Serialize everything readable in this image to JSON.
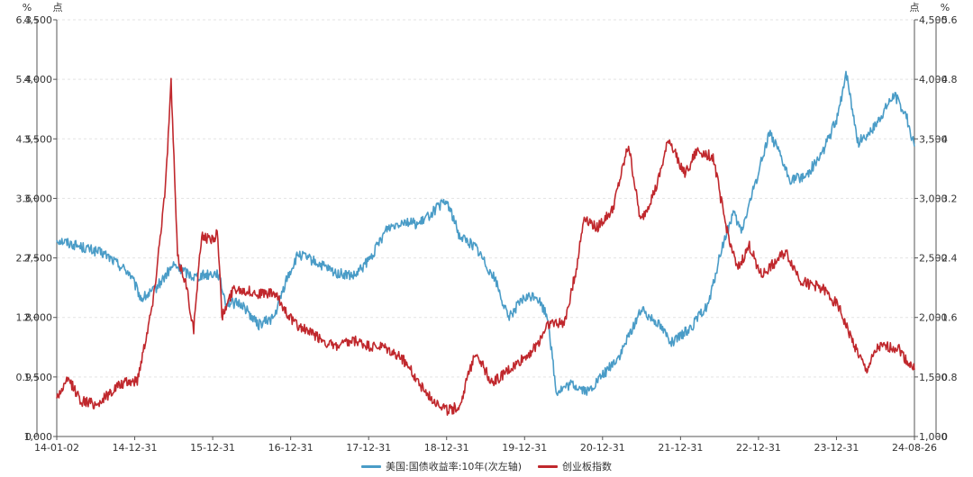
{
  "chart_data": {
    "type": "line",
    "units": {
      "y_left_outer": "%",
      "y_left_inner": "点",
      "y_right_inner": "点",
      "y_right_outer": "%"
    },
    "x_ticks": [
      "14-01-02",
      "14-12-31",
      "15-12-31",
      "16-12-31",
      "17-12-31",
      "18-12-31",
      "19-12-31",
      "20-12-31",
      "21-12-31",
      "22-12-31",
      "23-12-31",
      "24-08-26"
    ],
    "y_left_outer_ticks": [
      "0",
      "0.9",
      "1.8",
      "2.7",
      "3.6",
      "4.5",
      "5.4",
      "6.3"
    ],
    "y_index_ticks": [
      "1,000",
      "1,500",
      "2,000",
      "2,500",
      "3,000",
      "3,500",
      "4,000",
      "4,500"
    ],
    "y_right_outer_ticks": [
      "0",
      "0.8",
      "1.6",
      "2.4",
      "3.2",
      "4",
      "4.8",
      "5.6"
    ],
    "y_index_range": [
      1000,
      4500
    ],
    "y_right_range": [
      0,
      5.6
    ],
    "series": [
      {
        "name": "美国:国债收益率:10年(次左轴)",
        "color": "#4a9cc7",
        "axis": "right",
        "points": [
          [
            2014.0,
            2.65
          ],
          [
            2014.3,
            2.55
          ],
          [
            2014.6,
            2.45
          ],
          [
            2014.9,
            2.2
          ],
          [
            2015.05,
            1.85
          ],
          [
            2015.2,
            1.95
          ],
          [
            2015.45,
            2.3
          ],
          [
            2015.7,
            2.15
          ],
          [
            2016.0,
            2.2
          ],
          [
            2016.1,
            1.8
          ],
          [
            2016.3,
            1.78
          ],
          [
            2016.5,
            1.5
          ],
          [
            2016.7,
            1.6
          ],
          [
            2016.85,
            2.1
          ],
          [
            2017.0,
            2.45
          ],
          [
            2017.2,
            2.35
          ],
          [
            2017.45,
            2.2
          ],
          [
            2017.7,
            2.15
          ],
          [
            2017.9,
            2.4
          ],
          [
            2018.1,
            2.8
          ],
          [
            2018.3,
            2.9
          ],
          [
            2018.5,
            2.85
          ],
          [
            2018.75,
            3.1
          ],
          [
            2018.85,
            3.15
          ],
          [
            2019.0,
            2.7
          ],
          [
            2019.2,
            2.55
          ],
          [
            2019.45,
            2.1
          ],
          [
            2019.6,
            1.6
          ],
          [
            2019.8,
            1.85
          ],
          [
            2019.95,
            1.9
          ],
          [
            2020.1,
            1.6
          ],
          [
            2020.2,
            0.6
          ],
          [
            2020.4,
            0.7
          ],
          [
            2020.6,
            0.6
          ],
          [
            2020.8,
            0.85
          ],
          [
            2021.0,
            1.1
          ],
          [
            2021.25,
            1.7
          ],
          [
            2021.45,
            1.55
          ],
          [
            2021.65,
            1.25
          ],
          [
            2021.9,
            1.5
          ],
          [
            2022.1,
            1.8
          ],
          [
            2022.25,
            2.5
          ],
          [
            2022.4,
            3.0
          ],
          [
            2022.5,
            2.75
          ],
          [
            2022.7,
            3.5
          ],
          [
            2022.85,
            4.1
          ],
          [
            2022.95,
            3.85
          ],
          [
            2023.1,
            3.45
          ],
          [
            2023.3,
            3.5
          ],
          [
            2023.5,
            3.8
          ],
          [
            2023.7,
            4.3
          ],
          [
            2023.8,
            4.9
          ],
          [
            2023.95,
            3.95
          ],
          [
            2024.15,
            4.15
          ],
          [
            2024.4,
            4.6
          ],
          [
            2024.55,
            4.3
          ],
          [
            2024.65,
            3.9
          ]
        ]
      },
      {
        "name": "创业板指数",
        "color": "#c0282d",
        "axis": "left",
        "points": [
          [
            2014.0,
            1330
          ],
          [
            2014.15,
            1480
          ],
          [
            2014.3,
            1300
          ],
          [
            2014.5,
            1270
          ],
          [
            2014.75,
            1420
          ],
          [
            2014.9,
            1460
          ],
          [
            2015.0,
            1470
          ],
          [
            2015.2,
            2150
          ],
          [
            2015.35,
            3100
          ],
          [
            2015.42,
            3980
          ],
          [
            2015.5,
            2500
          ],
          [
            2015.6,
            2300
          ],
          [
            2015.7,
            1900
          ],
          [
            2015.8,
            2700
          ],
          [
            2015.9,
            2650
          ],
          [
            2016.0,
            2700
          ],
          [
            2016.05,
            2000
          ],
          [
            2016.2,
            2250
          ],
          [
            2016.5,
            2200
          ],
          [
            2016.7,
            2200
          ],
          [
            2016.95,
            1950
          ],
          [
            2017.2,
            1850
          ],
          [
            2017.45,
            1750
          ],
          [
            2017.7,
            1800
          ],
          [
            2017.9,
            1750
          ],
          [
            2018.05,
            1750
          ],
          [
            2018.3,
            1650
          ],
          [
            2018.6,
            1350
          ],
          [
            2018.85,
            1220
          ],
          [
            2019.0,
            1250
          ],
          [
            2019.2,
            1720
          ],
          [
            2019.4,
            1450
          ],
          [
            2019.7,
            1600
          ],
          [
            2019.95,
            1750
          ],
          [
            2020.1,
            1950
          ],
          [
            2020.3,
            1950
          ],
          [
            2020.45,
            2400
          ],
          [
            2020.55,
            2850
          ],
          [
            2020.7,
            2750
          ],
          [
            2020.9,
            2900
          ],
          [
            2021.1,
            3450
          ],
          [
            2021.25,
            2800
          ],
          [
            2021.45,
            3100
          ],
          [
            2021.6,
            3500
          ],
          [
            2021.8,
            3200
          ],
          [
            2021.95,
            3400
          ],
          [
            2022.15,
            3350
          ],
          [
            2022.3,
            2800
          ],
          [
            2022.45,
            2400
          ],
          [
            2022.6,
            2600
          ],
          [
            2022.75,
            2350
          ],
          [
            2022.9,
            2450
          ],
          [
            2023.05,
            2550
          ],
          [
            2023.25,
            2300
          ],
          [
            2023.5,
            2250
          ],
          [
            2023.7,
            2100
          ],
          [
            2023.85,
            1850
          ],
          [
            2024.05,
            1550
          ],
          [
            2024.2,
            1750
          ],
          [
            2024.45,
            1750
          ],
          [
            2024.55,
            1640
          ],
          [
            2024.65,
            1560
          ]
        ]
      }
    ]
  }
}
